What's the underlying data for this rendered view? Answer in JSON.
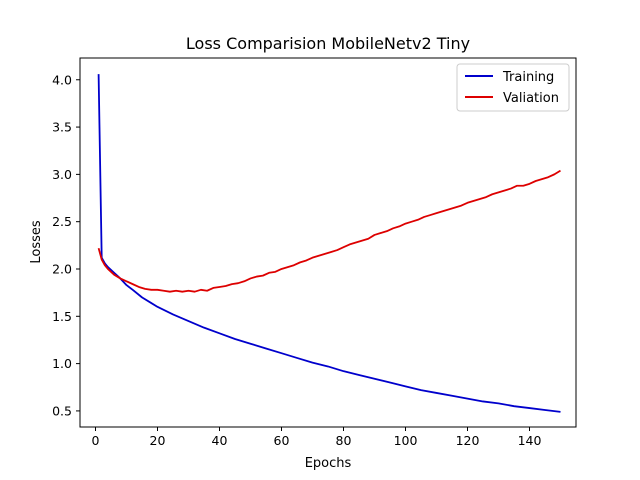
{
  "chart_data": {
    "type": "line",
    "title": "Loss Comparision MobileNetv2 Tiny",
    "xlabel": "Epochs",
    "ylabel": "Losses",
    "xlim": [
      -5,
      155
    ],
    "ylim": [
      0.33,
      4.23
    ],
    "xticks": [
      0,
      20,
      40,
      60,
      80,
      100,
      120,
      140
    ],
    "yticks": [
      0.5,
      1.0,
      1.5,
      2.0,
      2.5,
      3.0,
      3.5,
      4.0
    ],
    "xtick_labels": [
      "0",
      "20",
      "40",
      "60",
      "80",
      "100",
      "120",
      "140"
    ],
    "ytick_labels": [
      "0.5",
      "1.0",
      "1.5",
      "2.0",
      "2.5",
      "3.0",
      "3.5",
      "4.0"
    ],
    "grid": false,
    "legend_position": "top-right",
    "series": [
      {
        "name": "Training",
        "color": "#0000cc",
        "x": [
          1,
          2,
          3,
          4,
          5,
          6,
          8,
          10,
          12,
          15,
          18,
          20,
          25,
          30,
          35,
          40,
          45,
          50,
          55,
          60,
          65,
          70,
          75,
          80,
          85,
          90,
          95,
          100,
          105,
          110,
          115,
          120,
          125,
          130,
          135,
          140,
          145,
          150
        ],
        "y": [
          4.06,
          2.12,
          2.06,
          2.02,
          1.99,
          1.96,
          1.9,
          1.83,
          1.78,
          1.7,
          1.64,
          1.6,
          1.52,
          1.45,
          1.38,
          1.32,
          1.26,
          1.21,
          1.16,
          1.11,
          1.06,
          1.01,
          0.97,
          0.92,
          0.88,
          0.84,
          0.8,
          0.76,
          0.72,
          0.69,
          0.66,
          0.63,
          0.6,
          0.58,
          0.55,
          0.53,
          0.51,
          0.49
        ]
      },
      {
        "name": "Valiation",
        "color": "#dd0000",
        "x": [
          1,
          2,
          3,
          4,
          5,
          6,
          8,
          10,
          12,
          14,
          16,
          18,
          20,
          22,
          24,
          26,
          28,
          30,
          32,
          34,
          36,
          38,
          40,
          42,
          44,
          46,
          48,
          50,
          52,
          54,
          56,
          58,
          60,
          62,
          64,
          66,
          68,
          70,
          72,
          74,
          76,
          78,
          80,
          82,
          84,
          86,
          88,
          90,
          92,
          94,
          96,
          98,
          100,
          102,
          104,
          106,
          108,
          110,
          112,
          114,
          116,
          118,
          120,
          122,
          124,
          126,
          128,
          130,
          132,
          134,
          136,
          138,
          140,
          142,
          144,
          146,
          148,
          150
        ],
        "y": [
          2.22,
          2.1,
          2.04,
          2.0,
          1.97,
          1.94,
          1.9,
          1.87,
          1.84,
          1.81,
          1.79,
          1.78,
          1.78,
          1.77,
          1.76,
          1.77,
          1.76,
          1.77,
          1.76,
          1.78,
          1.77,
          1.8,
          1.81,
          1.82,
          1.84,
          1.85,
          1.87,
          1.9,
          1.92,
          1.93,
          1.96,
          1.97,
          2.0,
          2.02,
          2.04,
          2.07,
          2.09,
          2.12,
          2.14,
          2.16,
          2.18,
          2.2,
          2.23,
          2.26,
          2.28,
          2.3,
          2.32,
          2.36,
          2.38,
          2.4,
          2.43,
          2.45,
          2.48,
          2.5,
          2.52,
          2.55,
          2.57,
          2.59,
          2.61,
          2.63,
          2.65,
          2.67,
          2.7,
          2.72,
          2.74,
          2.76,
          2.79,
          2.81,
          2.83,
          2.85,
          2.88,
          2.88,
          2.9,
          2.93,
          2.95,
          2.97,
          3.0,
          3.04
        ]
      }
    ]
  }
}
